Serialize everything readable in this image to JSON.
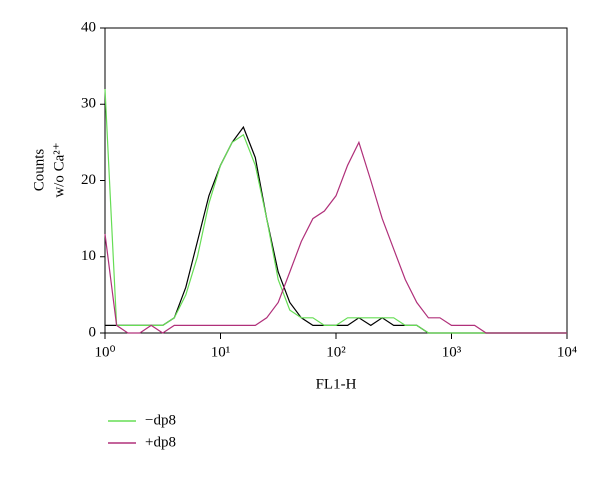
{
  "chart_data": {
    "type": "line",
    "xscale": "log",
    "ylabel": [
      "Counts",
      "w/o Ca²⁺"
    ],
    "xlabel": "FL1-H",
    "xlim": [
      1,
      10000
    ],
    "ylim": [
      0,
      40
    ],
    "xticks": [
      {
        "value": 1,
        "label": "10⁰"
      },
      {
        "value": 10,
        "label": "10¹"
      },
      {
        "value": 100,
        "label": "10²"
      },
      {
        "value": 1000,
        "label": "10³"
      },
      {
        "value": 10000,
        "label": "10⁴"
      }
    ],
    "yticks": [
      0,
      10,
      20,
      30,
      40
    ],
    "x": [
      1,
      1.26,
      1.58,
      2,
      2.51,
      3.16,
      3.98,
      5.01,
      6.31,
      7.94,
      10,
      12.6,
      15.8,
      20,
      25.1,
      31.6,
      39.8,
      50.1,
      63.1,
      79.4,
      100,
      126,
      158,
      200,
      251,
      316,
      398,
      501,
      631,
      794,
      1000,
      1259,
      1585,
      1995,
      2512,
      3162,
      3981,
      5012,
      6310,
      7943,
      10000
    ],
    "series": [
      {
        "color": "#000000",
        "values": [
          1,
          1,
          1,
          1,
          1,
          1,
          2,
          6,
          12,
          18,
          22,
          25,
          27,
          23,
          15,
          8,
          4,
          2,
          1,
          1,
          1,
          1,
          2,
          1,
          2,
          1,
          1,
          1,
          0,
          0,
          0,
          0,
          0,
          0,
          0,
          0,
          0,
          0,
          0,
          0,
          0
        ]
      },
      {
        "name": "−dp8",
        "color": "#66dd55",
        "values": [
          32,
          1,
          1,
          1,
          1,
          1,
          2,
          5,
          10,
          17,
          22,
          25,
          26,
          22,
          15,
          7,
          3,
          2,
          2,
          1,
          1,
          2,
          2,
          2,
          2,
          2,
          1,
          1,
          0,
          0,
          0,
          0,
          0,
          0,
          0,
          0,
          0,
          0,
          0,
          0,
          0
        ]
      },
      {
        "name": "+dp8",
        "color": "#b0307a",
        "values": [
          13,
          1,
          0,
          0,
          1,
          0,
          1,
          1,
          1,
          1,
          1,
          1,
          1,
          1,
          2,
          4,
          8,
          12,
          15,
          16,
          18,
          22,
          25,
          20,
          15,
          11,
          7,
          4,
          2,
          2,
          1,
          1,
          1,
          0,
          0,
          0,
          0,
          0,
          0,
          0,
          0
        ]
      }
    ],
    "legend": "bottom-left"
  }
}
